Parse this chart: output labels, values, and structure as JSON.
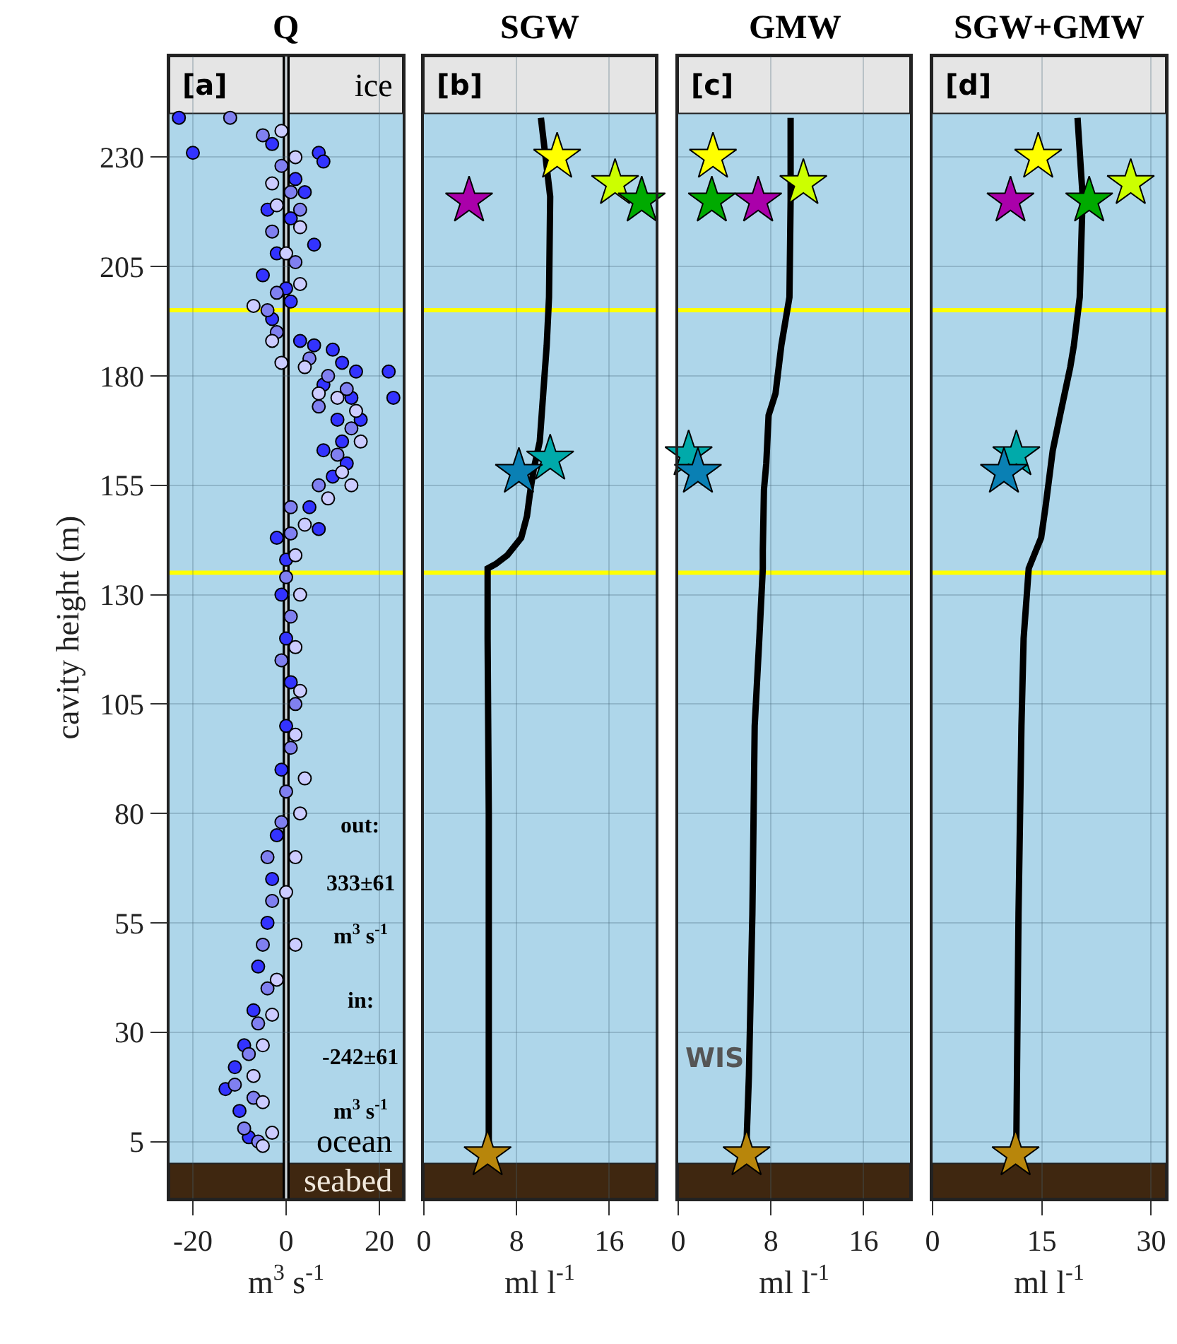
{
  "chart_data": [
    {
      "type": "scatter",
      "title": "Q",
      "xlabel": "m$^{3}$ s$^{-1}$",
      "ylabel": "cavity height (m)",
      "xlim": [
        -25,
        25
      ],
      "xticks": [
        -20,
        0,
        20
      ],
      "ylim": [
        -8,
        253
      ],
      "yticks": [
        5,
        30,
        55,
        80,
        105,
        130,
        155,
        180,
        205,
        230
      ],
      "grid": true,
      "marker": "circle",
      "annotations": [
        "[a]",
        "out:",
        "333±61",
        "m$^{3}$ s$^{-1}$",
        "in:",
        "-242±61",
        "m$^{3}$ s$^{-1}$",
        "ocean"
      ],
      "ref_lines": [
        {
          "axis": "y",
          "value": 195,
          "color": "#ffff00"
        },
        {
          "axis": "y",
          "value": 135,
          "color": "#ffff00"
        },
        {
          "axis": "x",
          "value": 0,
          "color": "#000000"
        }
      ],
      "bands": [
        {
          "axis": "y",
          "from": 240,
          "to": 253,
          "color": "#e5e5e5",
          "label": "ice"
        },
        {
          "axis": "y",
          "from": -8,
          "to": 0,
          "color": "#3f2710",
          "label": "seabed"
        }
      ],
      "series": [
        {
          "color": "#3333ff",
          "x": [
            -23,
            -20,
            -3,
            7,
            8,
            2,
            4,
            -4,
            1,
            6,
            -2,
            -5,
            0,
            1,
            -3,
            3,
            6,
            10,
            12,
            15,
            22,
            23,
            8,
            14,
            11,
            16,
            12,
            8,
            13,
            10,
            5,
            7,
            -2,
            0,
            -1,
            0,
            1,
            0,
            -1,
            -2,
            -3,
            -4,
            -6,
            -7,
            -9,
            -11,
            -13,
            -10,
            -8
          ],
          "values": [
            239,
            231,
            233,
            231,
            229,
            225,
            222,
            218,
            216,
            210,
            208,
            203,
            200,
            197,
            193,
            188,
            187,
            186,
            183,
            181,
            181,
            175,
            178,
            175,
            170,
            170,
            165,
            163,
            160,
            157,
            150,
            145,
            143,
            138,
            130,
            120,
            110,
            100,
            90,
            75,
            65,
            55,
            45,
            35,
            27,
            22,
            17,
            12,
            6
          ]
        },
        {
          "color": "#8080f0",
          "x": [
            -12,
            -5,
            -1,
            1,
            3,
            -3,
            2,
            -2,
            -4,
            -2,
            5,
            9,
            13,
            7,
            14,
            11,
            7,
            1,
            1,
            0,
            1,
            -1,
            2,
            1,
            0,
            -1,
            -4,
            -3,
            -5,
            -4,
            -6,
            -8,
            -11,
            -7,
            -9,
            -6
          ],
          "values": [
            239,
            235,
            228,
            222,
            218,
            213,
            206,
            199,
            195,
            190,
            184,
            180,
            177,
            173,
            168,
            162,
            155,
            150,
            144,
            134,
            125,
            115,
            105,
            95,
            85,
            78,
            70,
            60,
            50,
            40,
            32,
            25,
            18,
            15,
            8,
            5
          ]
        },
        {
          "color": "#ccccff",
          "x": [
            -1,
            2,
            -3,
            -2,
            3,
            0,
            3,
            -7,
            -3,
            -1,
            4,
            7,
            11,
            15,
            16,
            12,
            14,
            9,
            4,
            2,
            3,
            2,
            3,
            2,
            4,
            3,
            2,
            0,
            2,
            -2,
            -3,
            -5,
            -7,
            -5,
            -3,
            -5
          ],
          "values": [
            236,
            230,
            224,
            219,
            214,
            208,
            201,
            196,
            188,
            183,
            182,
            176,
            175,
            172,
            165,
            158,
            155,
            152,
            146,
            139,
            130,
            118,
            108,
            98,
            88,
            80,
            70,
            62,
            50,
            42,
            34,
            27,
            20,
            14,
            7,
            4
          ]
        }
      ]
    },
    {
      "type": "line",
      "title": "SGW",
      "xlabel": "ml l$^{-1}$",
      "xlim": [
        0,
        20
      ],
      "xticks": [
        0,
        8,
        16
      ],
      "ylim": [
        -8,
        253
      ],
      "yticks": [
        5,
        30,
        55,
        80,
        105,
        130,
        155,
        180,
        205,
        230
      ],
      "grid": true,
      "tick_labels": "x",
      "annotations": [
        "[b]"
      ],
      "ref_lines": [
        {
          "axis": "y",
          "value": 195,
          "color": "#ffff00"
        },
        {
          "axis": "y",
          "value": 135,
          "color": "#ffff00"
        }
      ],
      "bands": [
        {
          "axis": "y",
          "from": 240,
          "to": 253,
          "color": "#e5e5e5"
        },
        {
          "axis": "y",
          "from": -8,
          "to": 0,
          "color": "#3f2710"
        }
      ],
      "series": [
        {
          "type": "line",
          "color": "#000000",
          "x": [
            10.1,
            10.9,
            10.8,
            10.6,
            10.3,
            10.0,
            9.5,
            9.2,
            8.9,
            8.4,
            7.2,
            6.2,
            5.5,
            5.5,
            5.6,
            5.6,
            5.6
          ],
          "values": [
            239,
            221,
            198,
            187,
            176,
            165,
            159,
            154,
            148,
            143,
            139,
            137,
            136,
            120,
            80,
            40,
            5
          ]
        },
        {
          "type": "scatter",
          "marker": "star",
          "x": [
            3.9,
            11.5,
            16.5,
            18.8,
            10.9,
            8.2,
            5.5
          ],
          "values": [
            220,
            230,
            224,
            220,
            161,
            158,
            2
          ],
          "colors": [
            "#aa00aa",
            "#ffff00",
            "#ccff00",
            "#00aa00",
            "#00aaaa",
            "#0a80b4",
            "#b8860b"
          ]
        }
      ]
    },
    {
      "type": "line",
      "title": "GMW",
      "xlabel": "ml l$^{-1}$",
      "xlim": [
        0,
        20
      ],
      "xticks": [
        0,
        8,
        16
      ],
      "ylim": [
        -8,
        253
      ],
      "yticks": [
        5,
        30,
        55,
        80,
        105,
        130,
        155,
        180,
        205,
        230
      ],
      "grid": true,
      "tick_labels": "x",
      "annotations": [
        "[c]",
        "WIS"
      ],
      "ref_lines": [
        {
          "axis": "y",
          "value": 195,
          "color": "#ffff00"
        },
        {
          "axis": "y",
          "value": 135,
          "color": "#ffff00"
        }
      ],
      "bands": [
        {
          "axis": "y",
          "from": 240,
          "to": 253,
          "color": "#e5e5e5"
        },
        {
          "axis": "y",
          "from": -8,
          "to": 0,
          "color": "#3f2710"
        }
      ],
      "series": [
        {
          "type": "line",
          "color": "#000000",
          "x": [
            9.7,
            9.7,
            9.6,
            8.9,
            8.4,
            7.8,
            7.6,
            7.4,
            7.3,
            7.3,
            7.0,
            6.6,
            6.4,
            6.1,
            5.9
          ],
          "values": [
            239,
            220,
            198,
            187,
            176,
            171,
            160,
            154,
            140,
            136,
            120,
            100,
            57,
            20,
            5
          ]
        },
        {
          "type": "scatter",
          "marker": "star",
          "x": [
            6.9,
            3.0,
            10.8,
            2.9,
            0.9,
            1.7,
            5.9
          ],
          "values": [
            220,
            230,
            224,
            220,
            162,
            158,
            2
          ],
          "colors": [
            "#aa00aa",
            "#ffff00",
            "#ccff00",
            "#00aa00",
            "#00aaaa",
            "#0a80b4",
            "#b8860b"
          ]
        }
      ]
    },
    {
      "type": "line",
      "title": "SGW+GMW",
      "xlabel": "ml l$^{-1}$",
      "xlim": [
        0,
        32
      ],
      "xticks": [
        0,
        15,
        30
      ],
      "ylim": [
        -8,
        253
      ],
      "yticks": [
        5,
        30,
        55,
        80,
        105,
        130,
        155,
        180,
        205,
        230
      ],
      "grid": true,
      "tick_labels": "x",
      "annotations": [
        "[d]"
      ],
      "ref_lines": [
        {
          "axis": "y",
          "value": 195,
          "color": "#ffff00"
        },
        {
          "axis": "y",
          "value": 135,
          "color": "#ffff00"
        }
      ],
      "bands": [
        {
          "axis": "y",
          "from": 240,
          "to": 253,
          "color": "#e5e5e5"
        },
        {
          "axis": "y",
          "from": -8,
          "to": 0,
          "color": "#3f2710"
        }
      ],
      "series": [
        {
          "type": "line",
          "color": "#000000",
          "x": [
            19.9,
            20.6,
            20.2,
            19.4,
            18.9,
            17.5,
            16.5,
            15.5,
            14.9,
            13.2,
            12.5,
            12.2,
            11.8,
            11.5
          ],
          "values": [
            239,
            221,
            198,
            187,
            182,
            171,
            163,
            150,
            143,
            136,
            120,
            100,
            57,
            5
          ]
        },
        {
          "type": "scatter",
          "marker": "star",
          "x": [
            10.7,
            14.5,
            27.2,
            21.5,
            11.5,
            9.8,
            11.4
          ],
          "values": [
            220,
            230,
            224,
            220,
            162,
            158,
            2
          ],
          "colors": [
            "#aa00aa",
            "#ffff00",
            "#ccff00",
            "#00aa00",
            "#00aaaa",
            "#0a80b4",
            "#b8860b"
          ]
        }
      ]
    }
  ]
}
